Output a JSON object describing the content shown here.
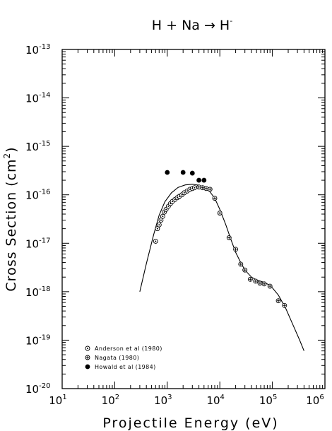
{
  "chart_data": {
    "type": "scatter",
    "title": {
      "main": "H + Na → H",
      "sup": "-"
    },
    "xlabel": "Projectile Energy (eV)",
    "ylabel": {
      "main": "Cross Section (cm",
      "sup": "2",
      "close": ")"
    },
    "x_scale": "log",
    "y_scale": "log",
    "xlim": [
      10,
      1000000
    ],
    "ylim": [
      1e-20,
      1e-13
    ],
    "x_ticks": [
      {
        "value": 10,
        "base": "10",
        "exp": "1"
      },
      {
        "value": 100,
        "base": "10",
        "exp": "2"
      },
      {
        "value": 1000,
        "base": "10",
        "exp": "3"
      },
      {
        "value": 10000,
        "base": "10",
        "exp": "4"
      },
      {
        "value": 100000,
        "base": "10",
        "exp": "5"
      },
      {
        "value": 1000000,
        "base": "10",
        "exp": "6"
      }
    ],
    "y_ticks": [
      {
        "value": 1e-20,
        "base": "10",
        "exp": "-20"
      },
      {
        "value": 1e-19,
        "base": "10",
        "exp": "-19"
      },
      {
        "value": 1e-18,
        "base": "10",
        "exp": "-18"
      },
      {
        "value": 1e-17,
        "base": "10",
        "exp": "-17"
      },
      {
        "value": 1e-16,
        "base": "10",
        "exp": "-16"
      },
      {
        "value": 1e-15,
        "base": "10",
        "exp": "-15"
      },
      {
        "value": 1e-14,
        "base": "10",
        "exp": "-14"
      },
      {
        "value": 1e-13,
        "base": "10",
        "exp": "-13"
      }
    ],
    "grid": false,
    "legend_position": "bottom-left",
    "series": [
      {
        "name": "Anderson et al (1980)",
        "marker": "circle-open",
        "points": [
          [
            600,
            1.1e-17
          ],
          [
            650,
            2e-17
          ],
          [
            700,
            2.4e-17
          ],
          [
            760,
            3e-17
          ],
          [
            820,
            3.6e-17
          ],
          [
            880,
            4.4e-17
          ],
          [
            950,
            5e-17
          ],
          [
            1050,
            5.8e-17
          ],
          [
            1150,
            6.6e-17
          ],
          [
            1250,
            7.3e-17
          ],
          [
            1400,
            8e-17
          ],
          [
            1550,
            8.7e-17
          ],
          [
            1700,
            9.3e-17
          ],
          [
            1900,
            1e-16
          ],
          [
            2100,
            1.1e-16
          ],
          [
            2400,
            1.2e-16
          ],
          [
            2700,
            1.3e-16
          ],
          [
            3000,
            1.35e-16
          ],
          [
            3300,
            1.4e-16
          ]
        ]
      },
      {
        "name": "Nagata (1980)",
        "marker": "circle-cross",
        "points": [
          [
            4000,
            1.45e-16
          ],
          [
            4700,
            1.4e-16
          ],
          [
            5500,
            1.35e-16
          ],
          [
            6500,
            1.3e-16
          ],
          [
            8000,
            8.5e-17
          ],
          [
            10000,
            4.2e-17
          ],
          [
            15000,
            1.3e-17
          ],
          [
            20000,
            7.5e-18
          ],
          [
            25000,
            3.7e-18
          ],
          [
            30000,
            2.8e-18
          ],
          [
            38000,
            1.8e-18
          ],
          [
            48000,
            1.65e-18
          ],
          [
            58000,
            1.5e-18
          ],
          [
            70000,
            1.45e-18
          ],
          [
            90000,
            1.3e-18
          ],
          [
            130000,
            6.5e-19
          ],
          [
            170000,
            5.2e-19
          ]
        ]
      },
      {
        "name": "Howald et al (1984)",
        "marker": "circle-filled",
        "points": [
          [
            1000,
            2.9e-16
          ],
          [
            2000,
            2.9e-16
          ],
          [
            3000,
            2.8e-16
          ],
          [
            4000,
            2e-16
          ],
          [
            5000,
            2e-16
          ]
        ]
      }
    ],
    "fit_curve": [
      [
        300,
        1e-18
      ],
      [
        400,
        3.8e-18
      ],
      [
        550,
        1.5e-17
      ],
      [
        700,
        3.8e-17
      ],
      [
        900,
        7.2e-17
      ],
      [
        1200,
        1.1e-16
      ],
      [
        1600,
        1.42e-16
      ],
      [
        2200,
        1.6e-16
      ],
      [
        3000,
        1.65e-16
      ],
      [
        4000,
        1.58e-16
      ],
      [
        5000,
        1.42e-16
      ],
      [
        6500,
        1.15e-16
      ],
      [
        8000,
        8.5e-17
      ],
      [
        10000,
        5e-17
      ],
      [
        13000,
        2.4e-17
      ],
      [
        16000,
        1.25e-17
      ],
      [
        20000,
        6.5e-18
      ],
      [
        25000,
        4e-18
      ],
      [
        30000,
        2.8e-18
      ],
      [
        40000,
        2e-18
      ],
      [
        50000,
        1.75e-18
      ],
      [
        65000,
        1.6e-18
      ],
      [
        80000,
        1.45e-18
      ],
      [
        100000,
        1.2e-18
      ],
      [
        130000,
        8.5e-19
      ],
      [
        180000,
        4.5e-19
      ],
      [
        250000,
        2e-19
      ],
      [
        330000,
        1e-19
      ],
      [
        400000,
        6e-20
      ]
    ]
  }
}
